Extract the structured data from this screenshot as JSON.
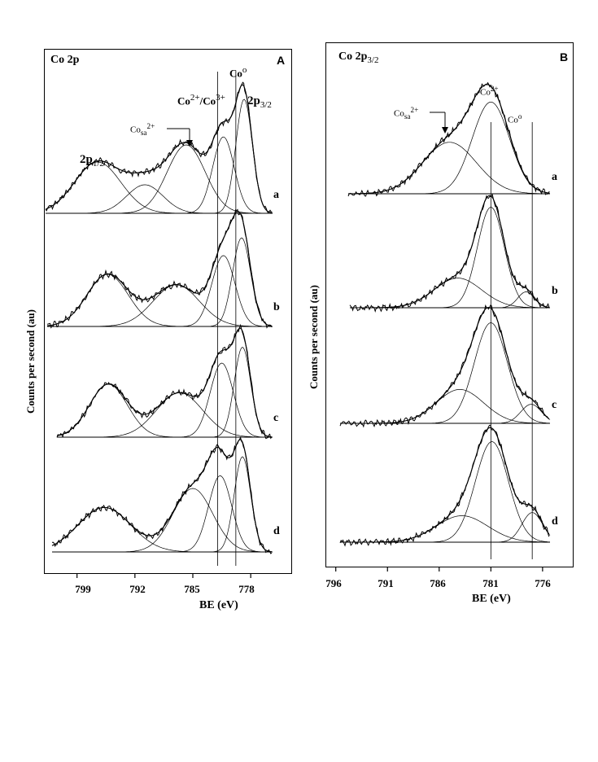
{
  "chart_data": [
    {
      "type": "line",
      "panel": "A",
      "title": "Co 2p",
      "xlabel": "BE (eV)",
      "ylabel": "Counts per second (au)",
      "xlim": [
        803,
        773
      ],
      "xticks": [
        799,
        792,
        785,
        778
      ],
      "peak_labels": {
        "p12_main": "2p",
        "p12_sub": "1/2",
        "cosa_main": "Co",
        "cosa_sub": "sa",
        "cosa_sup": "2+",
        "co23_a": "Co",
        "co23_a_sup": "2+",
        "co23_b": "/Co",
        "co23_b_sup": "3+",
        "co0_main": "Co",
        "co0_sup": "o",
        "p32_main": "2p",
        "p32_sub": "3/2"
      },
      "reference_lines": [
        782.0,
        779.8
      ],
      "traces": [
        "a",
        "b",
        "c",
        "d"
      ],
      "series": [
        {
          "name": "a",
          "components": [
            {
              "center": 796.5,
              "width": 2.8,
              "height": 0.45
            },
            {
              "center": 790.8,
              "width": 2.2,
              "height": 0.25
            },
            {
              "center": 785.8,
              "width": 2.3,
              "height": 0.6
            },
            {
              "center": 781.3,
              "width": 1.3,
              "height": 0.67
            },
            {
              "center": 778.8,
              "width": 1.0,
              "height": 1.0
            }
          ]
        },
        {
          "name": "b",
          "components": [
            {
              "center": 795.3,
              "width": 2.5,
              "height": 0.5
            },
            {
              "center": 787.0,
              "width": 2.8,
              "height": 0.4
            },
            {
              "center": 781.3,
              "width": 1.4,
              "height": 0.68
            },
            {
              "center": 779.1,
              "width": 1.1,
              "height": 0.85
            }
          ]
        },
        {
          "name": "c",
          "components": [
            {
              "center": 795.2,
              "width": 2.3,
              "height": 0.5
            },
            {
              "center": 786.6,
              "width": 2.8,
              "height": 0.42
            },
            {
              "center": 781.5,
              "width": 1.4,
              "height": 0.7
            },
            {
              "center": 779.0,
              "width": 1.0,
              "height": 0.85
            }
          ]
        },
        {
          "name": "d",
          "components": [
            {
              "center": 795.7,
              "width": 3.2,
              "height": 0.42
            },
            {
              "center": 785.0,
              "width": 2.4,
              "height": 0.6
            },
            {
              "center": 781.7,
              "width": 1.4,
              "height": 0.72
            },
            {
              "center": 779.0,
              "width": 1.0,
              "height": 0.9
            }
          ]
        }
      ]
    },
    {
      "type": "line",
      "panel": "B",
      "title_main": "Co 2p",
      "title_sub": "3/2",
      "xlabel": "BE (eV)",
      "ylabel": "Counts per second (au)",
      "xlim": [
        797,
        773
      ],
      "xticks": [
        796,
        791,
        786,
        781,
        776
      ],
      "peak_labels": {
        "cosa_main": "Co",
        "cosa_sub": "sa",
        "cosa_sup": "2+",
        "co2_main": "Co",
        "co2_sup": "2+",
        "co0_main": "Co",
        "co0_sup": "o"
      },
      "reference_lines": [
        781.0,
        777.0
      ],
      "traces": [
        "a",
        "b",
        "c",
        "d"
      ],
      "series": [
        {
          "name": "a",
          "components": [
            {
              "center": 785.0,
              "width": 2.6,
              "height": 0.55
            },
            {
              "center": 781.0,
              "width": 1.8,
              "height": 0.98
            }
          ]
        },
        {
          "name": "b",
          "components": [
            {
              "center": 784.2,
              "width": 2.3,
              "height": 0.28
            },
            {
              "center": 781.0,
              "width": 1.3,
              "height": 0.95
            },
            {
              "center": 777.6,
              "width": 0.8,
              "height": 0.15
            }
          ]
        },
        {
          "name": "c",
          "components": [
            {
              "center": 784.0,
              "width": 2.3,
              "height": 0.32
            },
            {
              "center": 781.0,
              "width": 1.6,
              "height": 0.95
            },
            {
              "center": 777.1,
              "width": 1.0,
              "height": 0.18
            }
          ]
        },
        {
          "name": "d",
          "components": [
            {
              "center": 783.8,
              "width": 2.5,
              "height": 0.25
            },
            {
              "center": 780.9,
              "width": 1.6,
              "height": 0.95
            },
            {
              "center": 777.0,
              "width": 1.0,
              "height": 0.28
            }
          ]
        }
      ]
    }
  ]
}
